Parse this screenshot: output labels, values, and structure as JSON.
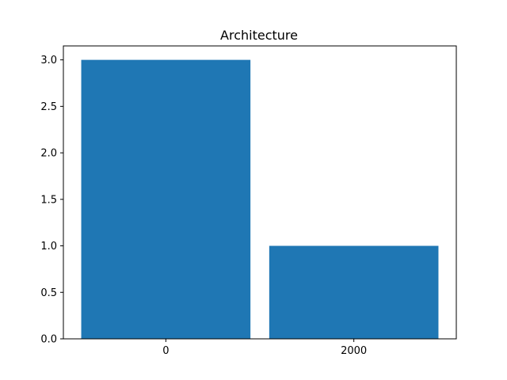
{
  "chart_data": {
    "type": "bar",
    "title": "Architecture",
    "xlabel": "",
    "ylabel": "",
    "categories": [
      "0",
      "2000"
    ],
    "values": [
      3,
      1
    ],
    "ylim": [
      0,
      3.15
    ],
    "yticks": [
      "0.0",
      "0.5",
      "1.0",
      "1.5",
      "2.0",
      "2.5",
      "3.0"
    ],
    "ytick_values": [
      0,
      0.5,
      1.0,
      1.5,
      2.0,
      2.5,
      3.0
    ],
    "bar_color": "#1f77b4",
    "grid": false,
    "legend": "none"
  }
}
